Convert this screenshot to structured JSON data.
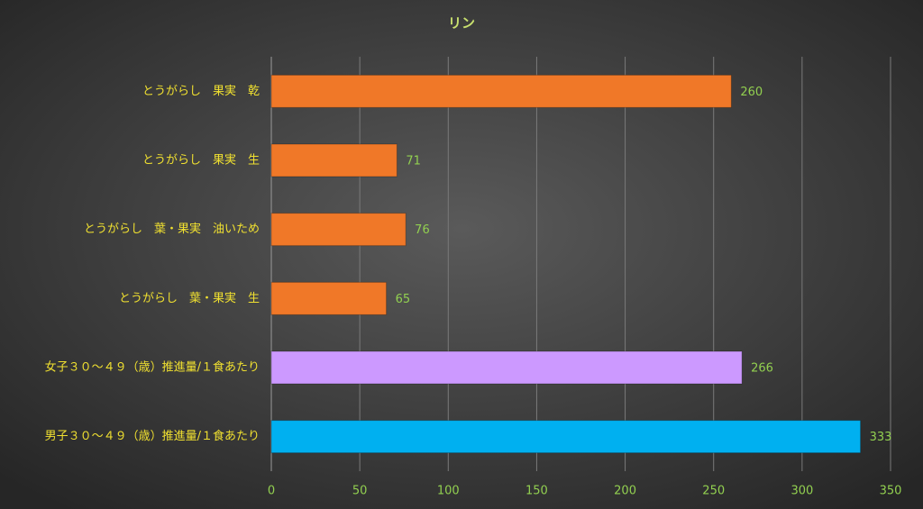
{
  "chart_data": {
    "type": "bar",
    "orientation": "horizontal",
    "title": "リン",
    "categories": [
      "とうがらし　果実　乾",
      "とうがらし　果実　生",
      "とうがらし　葉・果実　油いため",
      "とうがらし　葉・果実　生",
      "女子３０～４９（歳）推進量/１食あたり",
      "男子３０～４９（歳）推進量/１食あたり"
    ],
    "values": [
      260,
      71,
      76,
      65,
      266,
      333
    ],
    "colors": [
      "#f07828",
      "#f07828",
      "#f07828",
      "#f07828",
      "#cc99ff",
      "#00b0f0"
    ],
    "xlim": [
      0,
      350
    ],
    "xticks": [
      0,
      50,
      100,
      150,
      200,
      250,
      300,
      350
    ],
    "grid": true
  }
}
